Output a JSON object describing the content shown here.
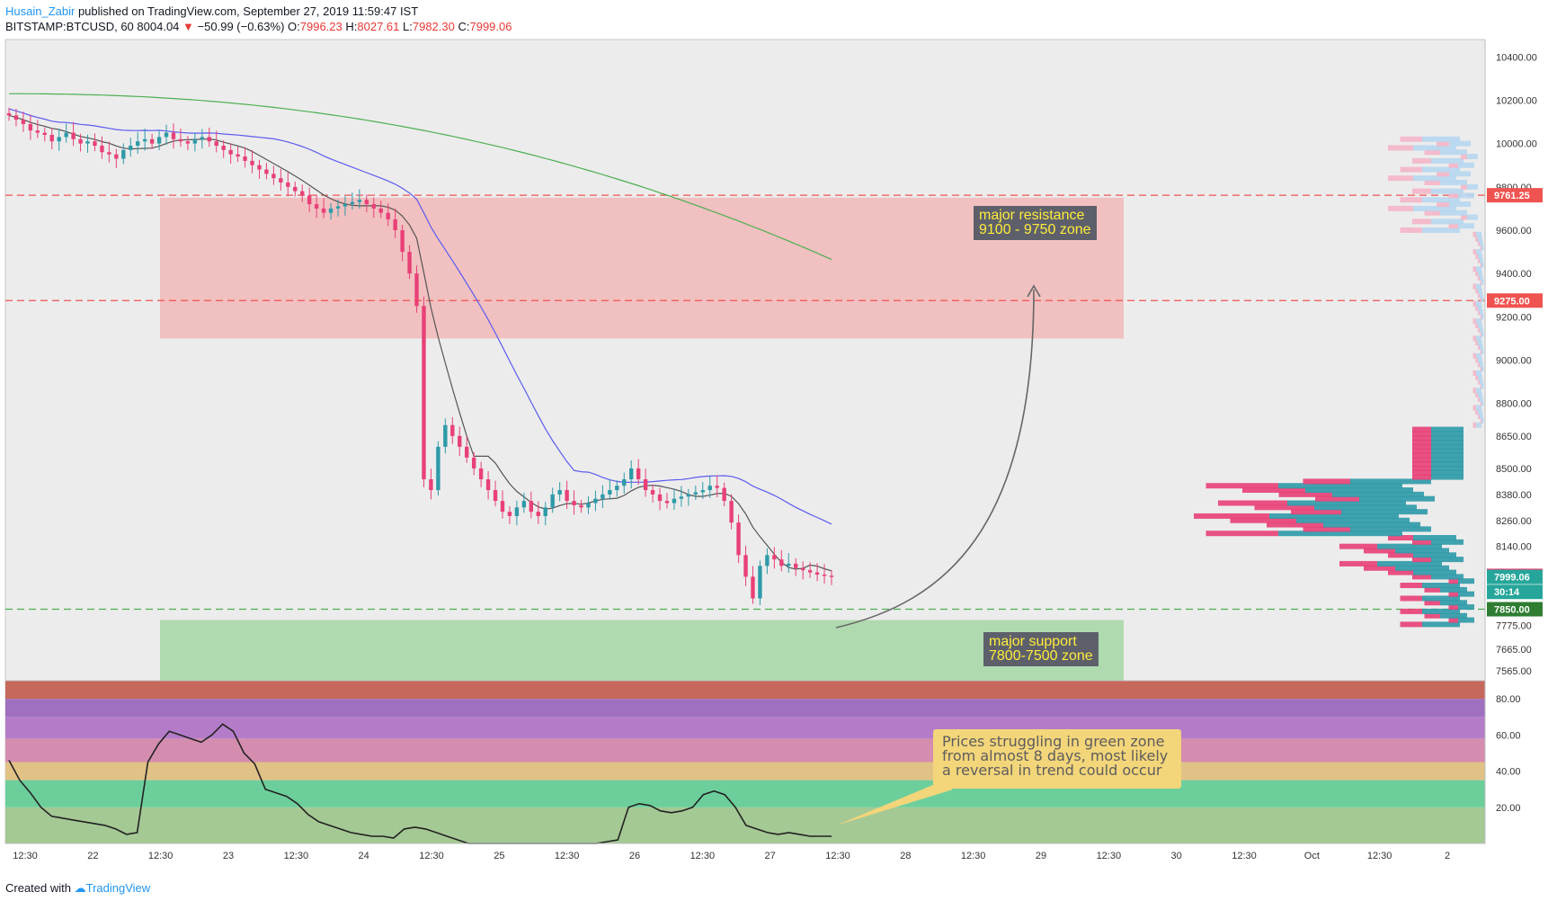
{
  "header": {
    "author": "Husain_Zabir",
    "published": "published on TradingView.com, September 27, 2019 11:59:47 IST",
    "symbol": "BITSTAMP:BTCUSD, 60",
    "last": "8004.04",
    "change": "−50.99 (−0.63%)",
    "o_label": "O:",
    "o": "7996.23",
    "h_label": "H:",
    "h": "8027.61",
    "l_label": "L:",
    "l": "7982.30",
    "c_label": "C:",
    "c": "7999.06"
  },
  "footer": {
    "created": "Created with",
    "brand": "TradingView"
  },
  "colors": {
    "up": "#26a69a",
    "down": "#ef5350",
    "candle_down": "#e84077",
    "candle_up": "#2e9aa8",
    "resistance_zone": "#f2b8b8",
    "support_zone": "#a8d8a8",
    "ma_fast": "#555555",
    "ma_mid": "#5b5bf0",
    "ma_slow": "#4caf50",
    "price_line_red": "#ef5350",
    "price_line_green": "#4caf50"
  },
  "chart_data": [
    {
      "type": "candlestick",
      "title": "BITSTAMP:BTCUSD, 60",
      "x_ticks": [
        "12:30",
        "22",
        "12:30",
        "23",
        "12:30",
        "24",
        "12:30",
        "25",
        "12:30",
        "26",
        "12:30",
        "27",
        "12:30",
        "28",
        "12:30",
        "29",
        "12:30",
        "30",
        "12:30",
        "Oct",
        "12:30",
        "2"
      ],
      "y_ticks": [
        10400,
        10200,
        10000,
        9800,
        9600,
        9400,
        9200,
        9000,
        8800,
        8650,
        8500,
        8380,
        8260,
        8140,
        7775,
        7665,
        7565
      ],
      "ylim": [
        7520,
        10480
      ],
      "price_labels": [
        {
          "value": 9761.25,
          "text": "9761.25",
          "color": "#ef5350"
        },
        {
          "value": 9275.0,
          "text": "9275.00",
          "color": "#ef5350"
        },
        {
          "value": 8004.04,
          "text": "8004.04",
          "color": "#e84077"
        },
        {
          "value": 7999.06,
          "text": "7999.06",
          "color": "#26a69a"
        },
        {
          "value": 7930,
          "text": "30:14",
          "color": "#26a69a"
        },
        {
          "value": 7850.0,
          "text": "7850.00",
          "color": "#2e7d32"
        }
      ],
      "zones": [
        {
          "name": "major resistance",
          "from": 9100,
          "to": 9750,
          "label": "major resistance\n9100 - 9750 zone"
        },
        {
          "name": "major support",
          "from": 7500,
          "to": 7800,
          "label": "major support\n7800-7500 zone"
        }
      ],
      "horizontal_lines": [
        {
          "value": 9761.25,
          "style": "dashed",
          "color": "#ef5350"
        },
        {
          "value": 9275.0,
          "style": "dashed",
          "color": "#ef5350"
        },
        {
          "value": 7850.0,
          "style": "dashed",
          "color": "#4caf50"
        }
      ],
      "candles_close": [
        10130,
        10110,
        10090,
        10060,
        10050,
        10040,
        10010,
        10030,
        10050,
        10020,
        10000,
        10010,
        9990,
        9960,
        9950,
        9930,
        9970,
        9990,
        10010,
        10020,
        10000,
        10030,
        10050,
        10020,
        10010,
        10000,
        10020,
        10030,
        10010,
        9990,
        9970,
        9950,
        9940,
        9920,
        9900,
        9880,
        9860,
        9840,
        9820,
        9800,
        9780,
        9760,
        9720,
        9700,
        9680,
        9700,
        9710,
        9720,
        9730,
        9740,
        9720,
        9700,
        9680,
        9650,
        9600,
        9500,
        9400,
        9250,
        8450,
        8400,
        8600,
        8700,
        8650,
        8600,
        8550,
        8500,
        8450,
        8400,
        8350,
        8300,
        8280,
        8320,
        8350,
        8300,
        8280,
        8320,
        8380,
        8400,
        8350,
        8330,
        8320,
        8340,
        8360,
        8380,
        8400,
        8420,
        8450,
        8500,
        8450,
        8400,
        8380,
        8350,
        8340,
        8360,
        8370,
        8380,
        8390,
        8400,
        8420,
        8410,
        8350,
        8250,
        8100,
        8000,
        7900,
        8050,
        8100,
        8080,
        8050,
        8060,
        8040,
        8030,
        8020,
        8010,
        8005,
        8004
      ]
    },
    {
      "type": "line",
      "title": "",
      "ylim": [
        0,
        90
      ],
      "y_ticks": [
        80,
        60,
        40,
        20
      ],
      "values": [
        46,
        35,
        28,
        20,
        15,
        14,
        13,
        12,
        11,
        10,
        8,
        5,
        6,
        45,
        55,
        62,
        60,
        58,
        56,
        60,
        66,
        62,
        50,
        44,
        30,
        28,
        26,
        22,
        16,
        12,
        10,
        8,
        6,
        5,
        4,
        4,
        3,
        8,
        9,
        8,
        6,
        4,
        2,
        0,
        0,
        0,
        0,
        0,
        0,
        0,
        0,
        0,
        0,
        0,
        0,
        0,
        1,
        2,
        20,
        22,
        21,
        18,
        17,
        18,
        20,
        27,
        29,
        27,
        20,
        10,
        8,
        6,
        5,
        6,
        5,
        4,
        4,
        4
      ]
    }
  ],
  "annotation_note": "Prices struggling in green zone\nfrom almost 8 days, most likely\na reversal in trend could occur",
  "texts": {
    "res1": "major resistance",
    "res2": "9100 - 9750 zone",
    "sup1": "major support",
    "sup2": "7800-7500 zone",
    "note1": "Prices struggling in green zone",
    "note2": "from almost 8 days, most likely",
    "note3": "a reversal in trend could occur"
  }
}
